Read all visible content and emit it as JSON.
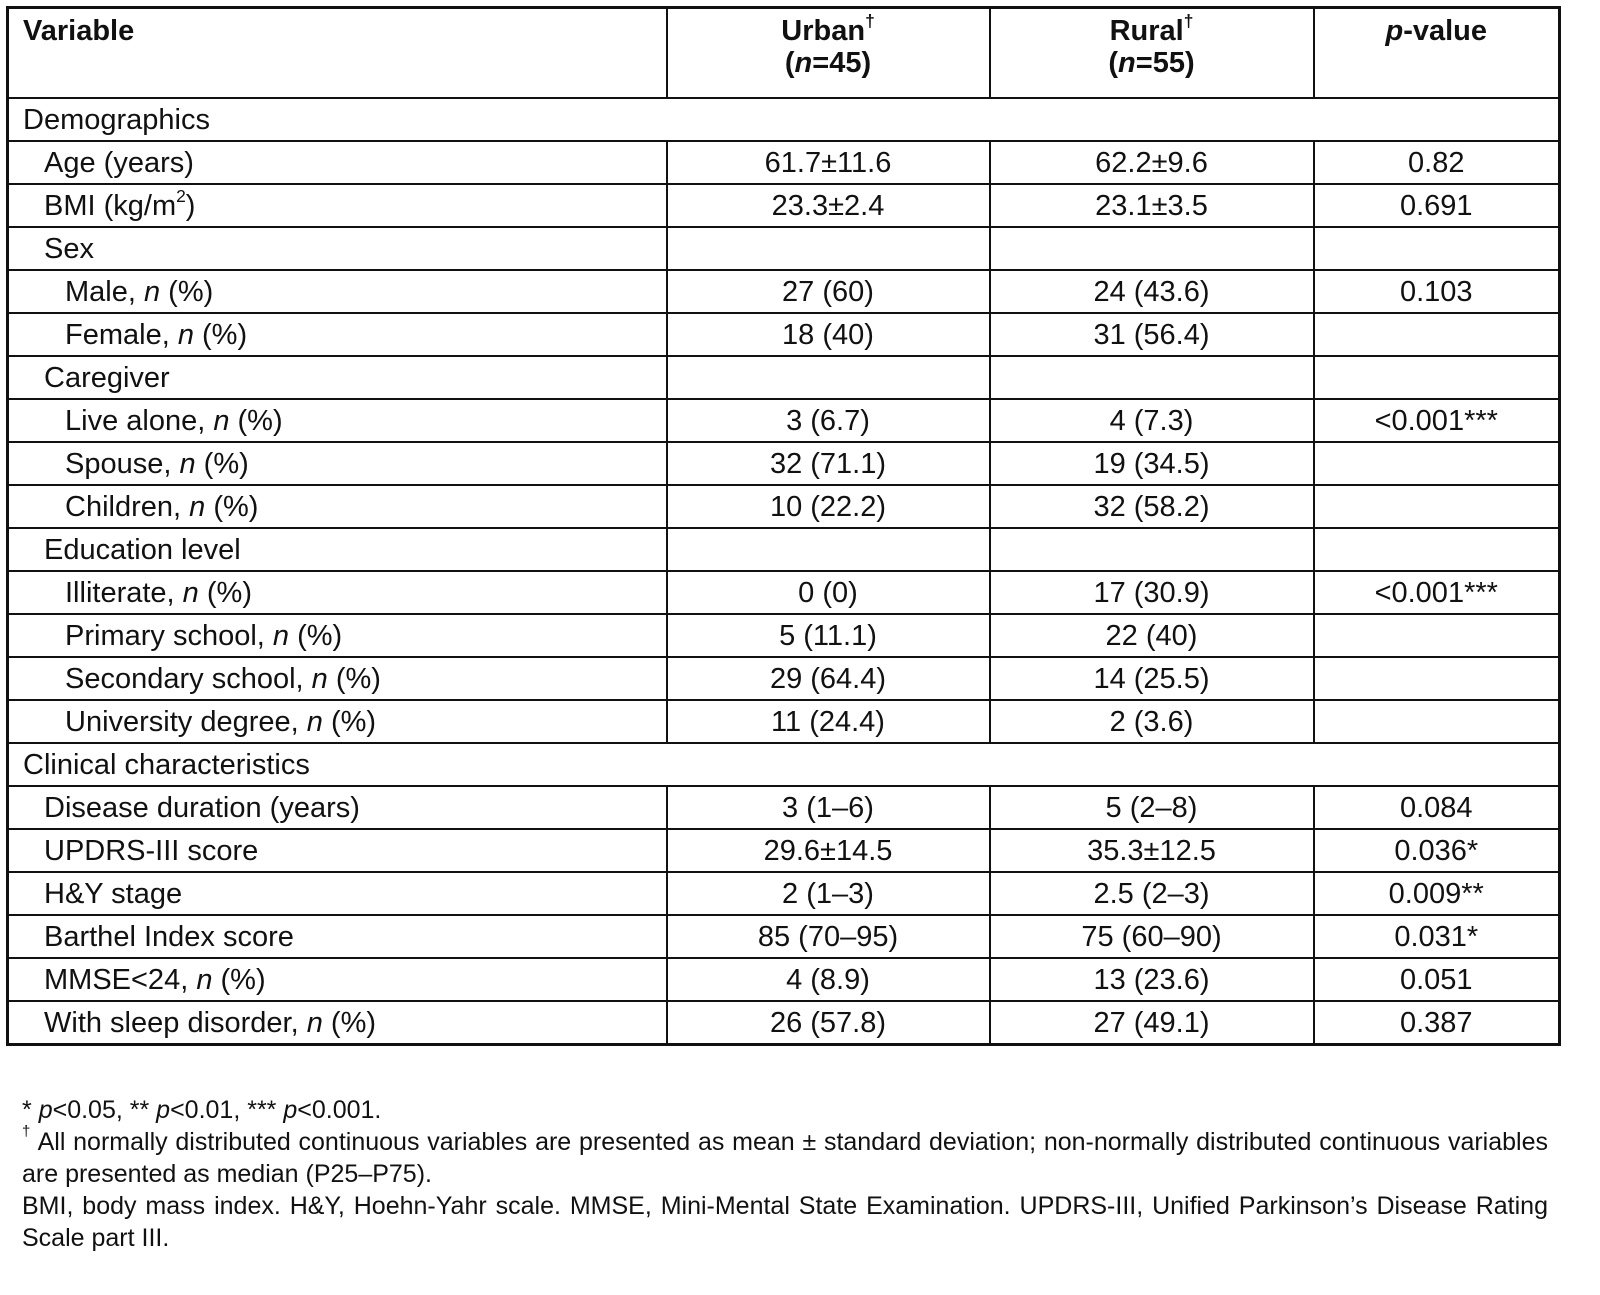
{
  "table": {
    "header": {
      "variable": "Variable",
      "columns": [
        {
          "label": "Urban†",
          "n": "(n=45)"
        },
        {
          "label": "Rural†",
          "n": "(n=55)"
        },
        {
          "label": "p-value"
        }
      ]
    },
    "sections": [
      {
        "title": "Demographics",
        "rows": [
          {
            "label": "Age (years)",
            "urban": "61.7±11.6",
            "rural": "62.2±9.6",
            "p": "0.82"
          },
          {
            "label": "BMI (kg/m2)",
            "urban": "23.3±2.4",
            "rural": "23.1±3.5",
            "p": "0.691"
          },
          {
            "label": "Sex",
            "rows": [
              {
                "label": "Male, n (%)",
                "urban": "27 (60)",
                "rural": "24 (43.6)",
                "p": "0.103"
              },
              {
                "label": "Female, n (%)",
                "urban": "18 (40)",
                "rural": "31 (56.4)"
              }
            ]
          },
          {
            "label": "Caregiver",
            "rows": [
              {
                "label": "Live alone, n (%)",
                "urban": "3 (6.7)",
                "rural": "4 (7.3)",
                "p": "<0.001***"
              },
              {
                "label": "Spouse, n (%)",
                "urban": "32 (71.1)",
                "rural": "19 (34.5)"
              },
              {
                "label": "Children, n (%)",
                "urban": "10 (22.2)",
                "rural": "32 (58.2)"
              }
            ]
          },
          {
            "label": "Education level",
            "rows": [
              {
                "label": "Illiterate, n (%)",
                "urban": "0 (0)",
                "rural": "17 (30.9)",
                "p": "<0.001***"
              },
              {
                "label": "Primary school, n (%)",
                "urban": "5 (11.1)",
                "rural": "22 (40)"
              },
              {
                "label": "Secondary school, n (%)",
                "urban": "29 (64.4)",
                "rural": "14 (25.5)"
              },
              {
                "label": "University degree, n (%)",
                "urban": "11 (24.4)",
                "rural": "2 (3.6)"
              }
            ]
          }
        ]
      },
      {
        "title": "Clinical characteristics",
        "rows": [
          {
            "label": "Disease duration (years)",
            "urban": "3 (1–6)",
            "rural": "5 (2–8)",
            "p": "0.084"
          },
          {
            "label": "UPDRS-III score",
            "urban": "29.6±14.5",
            "rural": "35.3±12.5",
            "p": "0.036*"
          },
          {
            "label": "H&Y stage",
            "urban": "2 (1–3)",
            "rural": "2.5 (2–3)",
            "p": "0.009**"
          },
          {
            "label": "Barthel Index score",
            "urban": "85 (70–95)",
            "rural": "75 (60–90)",
            "p": "0.031*"
          },
          {
            "label": "MMSE<24, n (%)",
            "urban": "4 (8.9)",
            "rural": "13 (23.6)",
            "p": "0.051"
          },
          {
            "label": "With sleep disorder, n (%)",
            "urban": "26 (57.8)",
            "rural": "27 (49.1)",
            "p": "0.387"
          }
        ]
      }
    ],
    "footnotes": [
      "* p<0.05, ** p<0.01, *** p<0.001.",
      "† All normally distributed continuous variables are presented as mean ± standard deviation; non-normally distributed continuous variables are presented as median (P25–P75).",
      "BMI, body mass index. H&Y, Hoehn-Yahr scale. MMSE, Mini-Mental State Examination. UPDRS-III, Unified Parkinson’s Disease Rating Scale part III."
    ]
  }
}
